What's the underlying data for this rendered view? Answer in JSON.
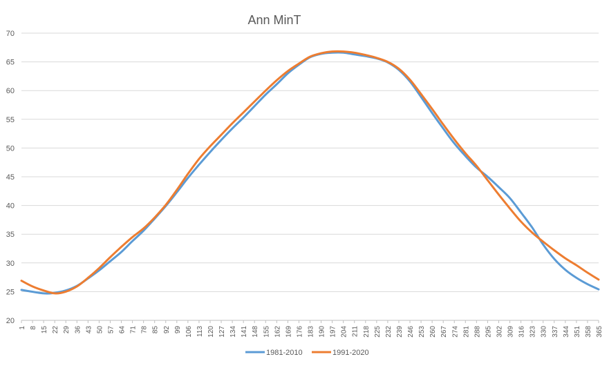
{
  "chart_data": {
    "type": "line",
    "title": "Ann MinT",
    "xlabel": "",
    "ylabel": "",
    "xlim": [
      1,
      365
    ],
    "ylim": [
      20,
      70
    ],
    "yticks": [
      20,
      25,
      30,
      35,
      40,
      45,
      50,
      55,
      60,
      65,
      70
    ],
    "xtick_start": 1,
    "xtick_step": 7,
    "grid": true,
    "legend_position": "bottom",
    "series": [
      {
        "name": "1981-2010",
        "color": "#5B9BD5",
        "x": [
          1,
          15,
          22,
          29,
          36,
          43,
          50,
          57,
          64,
          71,
          78,
          85,
          92,
          99,
          106,
          113,
          120,
          127,
          134,
          141,
          148,
          155,
          162,
          169,
          176,
          183,
          190,
          197,
          204,
          211,
          218,
          225,
          232,
          239,
          246,
          253,
          260,
          267,
          274,
          281,
          288,
          295,
          302,
          309,
          316,
          323,
          330,
          337,
          344,
          351,
          358,
          365
        ],
        "values": [
          25.3,
          24.7,
          24.8,
          25.2,
          26.0,
          27.3,
          28.7,
          30.3,
          31.9,
          33.8,
          35.6,
          37.7,
          39.9,
          42.3,
          44.8,
          47.1,
          49.3,
          51.4,
          53.4,
          55.3,
          57.3,
          59.3,
          61.1,
          63.0,
          64.5,
          65.8,
          66.4,
          66.6,
          66.6,
          66.3,
          66.0,
          65.6,
          64.9,
          63.6,
          61.6,
          58.9,
          56.1,
          53.4,
          50.8,
          48.6,
          46.6,
          45.0,
          43.2,
          41.3,
          38.8,
          36.2,
          33.2,
          30.7,
          28.8,
          27.4,
          26.3,
          25.4
        ]
      },
      {
        "name": "1991-2020",
        "color": "#ED7D31",
        "x": [
          1,
          8,
          15,
          22,
          29,
          36,
          43,
          50,
          57,
          64,
          71,
          78,
          85,
          92,
          99,
          106,
          113,
          120,
          127,
          134,
          141,
          148,
          155,
          162,
          169,
          176,
          183,
          190,
          197,
          204,
          211,
          218,
          225,
          232,
          239,
          246,
          253,
          260,
          267,
          274,
          281,
          288,
          295,
          302,
          309,
          316,
          323,
          330,
          337,
          344,
          351,
          358,
          365
        ],
        "values": [
          26.9,
          25.9,
          25.2,
          24.7,
          25.0,
          25.9,
          27.4,
          29.1,
          31.0,
          32.8,
          34.5,
          36.0,
          37.9,
          40.1,
          42.7,
          45.5,
          48.1,
          50.3,
          52.3,
          54.3,
          56.2,
          58.1,
          60.0,
          61.8,
          63.4,
          64.7,
          65.9,
          66.5,
          66.8,
          66.8,
          66.6,
          66.2,
          65.7,
          65.0,
          63.8,
          61.9,
          59.4,
          56.8,
          54.1,
          51.5,
          49.1,
          46.9,
          44.4,
          41.9,
          39.5,
          37.2,
          35.3,
          33.7,
          32.2,
          30.8,
          29.6,
          28.3,
          27.1
        ]
      }
    ]
  }
}
